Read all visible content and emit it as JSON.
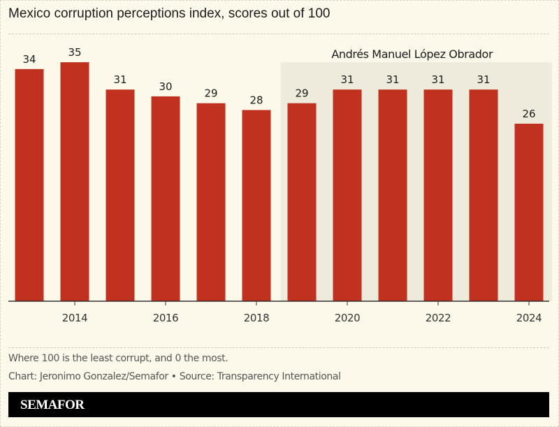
{
  "title": "Mexico corruption perceptions index, scores out of 100",
  "chart_data": {
    "type": "bar",
    "title": "Mexico corruption perceptions index, scores out of 100",
    "categories": [
      2013,
      2014,
      2015,
      2016,
      2017,
      2018,
      2019,
      2020,
      2021,
      2022,
      2023,
      2024
    ],
    "values": [
      34,
      35,
      31,
      30,
      29,
      28,
      29,
      31,
      31,
      31,
      31,
      26
    ],
    "x_tick_labels": [
      "2014",
      "2016",
      "2018",
      "2020",
      "2022",
      "2024"
    ],
    "ylim": [
      0,
      44
    ],
    "grid": false,
    "bar_color": "#c0321f",
    "annotations": [
      {
        "label": "Andrés Manuel López Obrador",
        "from": 2019,
        "to": 2024,
        "shade_color": "#efebdc"
      }
    ]
  },
  "notes": {
    "description": "Where 100 is the least corrupt, and 0 the most.",
    "credit": "Chart: Jeronimo Gonzalez/Semafor • Source: Transparency International"
  },
  "footer": {
    "logo": "SEMAFOR"
  }
}
